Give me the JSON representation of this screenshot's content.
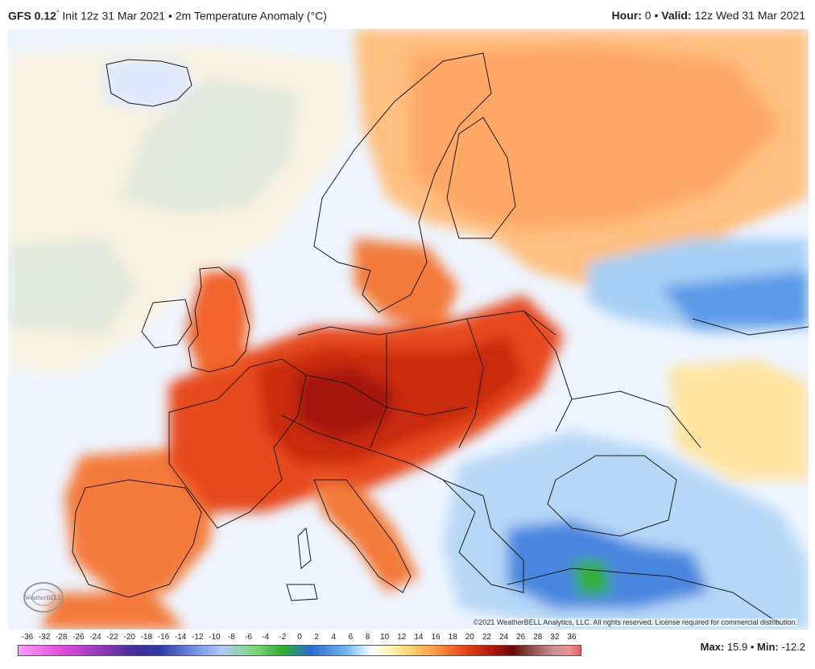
{
  "header": {
    "model": "GFS 0.12",
    "model_sup": "°",
    "init": "Init 12z 31 Mar 2021",
    "bullet": "•",
    "product": "2m Temperature Anomaly (°C)",
    "hour_label": "Hour:",
    "hour_value": "0",
    "valid_label": "Valid:",
    "valid_value": "12z Wed 31 Mar 2021"
  },
  "map": {
    "region": "Europe",
    "credit": "©2021 WeatherBELL Analytics, LLC. All rights reserved. License required for commercial distribution.",
    "logo_text": "WeatherBELL"
  },
  "legend": {
    "unit": "°C",
    "ticks": [
      "-36",
      "-32",
      "-28",
      "-26",
      "-24",
      "-22",
      "-20",
      "-18",
      "-16",
      "-14",
      "-12",
      "-10",
      "-8",
      "-6",
      "-4",
      "-2",
      "0",
      "2",
      "4",
      "6",
      "8",
      "10",
      "12",
      "14",
      "16",
      "18",
      "20",
      "22",
      "24",
      "26",
      "28",
      "32",
      "36"
    ],
    "colors": {
      "very_cold": "#ff99ff",
      "cold": "#2a6ad8",
      "cool": "#b0dcf8",
      "neutral": "#ffffff",
      "warm": "#ffd070",
      "hot": "#f04a1a",
      "very_hot": "#b4170c"
    }
  },
  "stats": {
    "max_label": "Max:",
    "max_value": "15.9",
    "sep": "•",
    "min_label": "Min:",
    "min_value": "-12.2"
  }
}
